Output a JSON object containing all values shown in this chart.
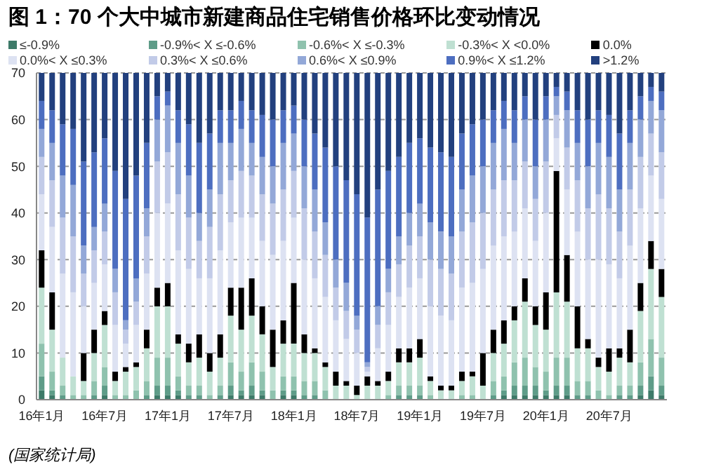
{
  "chart_data": {
    "type": "bar",
    "stacked": true,
    "title": "图 1：70 个大中城市新建商品住宅销售价格环比变动情况",
    "categories": [
      "16年1月",
      null,
      null,
      null,
      null,
      null,
      "16年7月",
      null,
      null,
      null,
      null,
      null,
      "17年1月",
      null,
      null,
      null,
      null,
      null,
      "17年7月",
      null,
      null,
      null,
      null,
      null,
      "18年1月",
      null,
      null,
      null,
      null,
      null,
      "18年7月",
      null,
      null,
      null,
      null,
      null,
      "19年1月",
      null,
      null,
      null,
      null,
      null,
      "19年7月",
      null,
      null,
      null,
      null,
      null,
      "20年1月",
      null,
      null,
      null,
      null,
      null,
      "20年7月",
      null,
      null,
      null,
      null,
      null
    ],
    "series": [
      {
        "name": "≤-0.9%",
        "color": "#3d7a68",
        "values": [
          2,
          1,
          0,
          0,
          0,
          0,
          1,
          0,
          0,
          0,
          0,
          1,
          1,
          1,
          0,
          0,
          0,
          0,
          1,
          1,
          1,
          1,
          0,
          1,
          1,
          0,
          0,
          0,
          0,
          0,
          0,
          0,
          0,
          0,
          0,
          0,
          0,
          0,
          0,
          0,
          0,
          0,
          0,
          0,
          1,
          1,
          1,
          1,
          1,
          1,
          1,
          0,
          0,
          0,
          0,
          0,
          0,
          1,
          2,
          1
        ]
      },
      {
        "name": "-0.9%< X ≤-0.6%",
        "color": "#5e9c88",
        "values": [
          3,
          1,
          1,
          0,
          0,
          1,
          2,
          0,
          0,
          0,
          1,
          2,
          2,
          1,
          1,
          1,
          0,
          1,
          2,
          1,
          2,
          1,
          0,
          1,
          1,
          1,
          1,
          0,
          0,
          0,
          0,
          0,
          0,
          0,
          1,
          1,
          1,
          0,
          0,
          0,
          0,
          0,
          0,
          1,
          1,
          2,
          2,
          2,
          1,
          2,
          2,
          1,
          1,
          0,
          0,
          1,
          1,
          2,
          3,
          2
        ]
      },
      {
        "name": "-0.6%< X ≤-0.3%",
        "color": "#8fc2ae",
        "values": [
          7,
          4,
          2,
          1,
          1,
          3,
          4,
          1,
          1,
          2,
          3,
          6,
          6,
          3,
          2,
          2,
          1,
          2,
          5,
          4,
          5,
          4,
          2,
          3,
          3,
          3,
          3,
          2,
          0,
          0,
          0,
          0,
          0,
          1,
          2,
          2,
          2,
          1,
          0,
          0,
          1,
          1,
          0,
          3,
          3,
          5,
          6,
          4,
          4,
          6,
          6,
          3,
          3,
          2,
          1,
          2,
          2,
          5,
          8,
          6
        ]
      },
      {
        "name": "-0.3%< X <0.0%",
        "color": "#bfe0d2",
        "values": [
          12,
          9,
          6,
          4,
          3,
          6,
          9,
          3,
          5,
          5,
          7,
          11,
          11,
          7,
          5,
          6,
          5,
          6,
          10,
          9,
          10,
          8,
          5,
          7,
          7,
          6,
          6,
          5,
          3,
          3,
          1,
          3,
          3,
          3,
          5,
          5,
          6,
          3,
          2,
          2,
          3,
          4,
          3,
          6,
          7,
          9,
          12,
          9,
          9,
          14,
          12,
          7,
          7,
          5,
          5,
          6,
          5,
          11,
          15,
          13
        ]
      },
      {
        "name": "0.0%",
        "color": "#000000",
        "values": [
          8,
          8,
          0,
          0,
          6,
          5,
          3,
          2,
          1,
          1,
          4,
          4,
          5,
          2,
          4,
          5,
          4,
          5,
          6,
          9,
          8,
          6,
          8,
          5,
          13,
          4,
          1,
          1,
          3,
          1,
          2,
          2,
          1,
          2,
          3,
          3,
          4,
          1,
          1,
          1,
          2,
          1,
          7,
          5,
          5,
          3,
          5,
          4,
          8,
          26,
          10,
          9,
          2,
          2,
          5,
          2,
          7,
          6,
          6,
          6
        ]
      },
      {
        "name": "0.0%< X ≤0.3%",
        "color": "#dde2f2",
        "values": [
          12,
          14,
          18,
          18,
          10,
          10,
          10,
          10,
          5,
          8,
          12,
          16,
          17,
          18,
          16,
          12,
          16,
          18,
          14,
          15,
          13,
          14,
          16,
          17,
          14,
          16,
          15,
          14,
          11,
          9,
          7,
          1,
          7,
          10,
          11,
          13,
          13,
          15,
          15,
          14,
          18,
          19,
          18,
          18,
          18,
          16,
          15,
          14,
          17,
          7,
          14,
          16,
          17,
          21,
          18,
          15,
          18,
          16,
          14,
          15
        ]
      },
      {
        "name": "0.3%< X ≤0.6%",
        "color": "#c2cbe8",
        "values": [
          8,
          10,
          12,
          12,
          7,
          7,
          7,
          7,
          3,
          5,
          8,
          11,
          11,
          12,
          11,
          8,
          11,
          12,
          9,
          10,
          9,
          10,
          11,
          11,
          10,
          11,
          10,
          9,
          7,
          6,
          5,
          1,
          5,
          7,
          7,
          9,
          9,
          10,
          10,
          10,
          12,
          13,
          12,
          12,
          12,
          11,
          10,
          9,
          11,
          5,
          9,
          11,
          11,
          14,
          12,
          10,
          12,
          11,
          9,
          10
        ]
      },
      {
        "name": "0.6%< X ≤0.9%",
        "color": "#93a8d8",
        "values": [
          6,
          8,
          9,
          11,
          6,
          5,
          6,
          5,
          2,
          5,
          6,
          9,
          10,
          11,
          9,
          6,
          8,
          11,
          8,
          9,
          7,
          8,
          8,
          10,
          8,
          9,
          9,
          7,
          6,
          6,
          3,
          1,
          4,
          5,
          6,
          7,
          7,
          8,
          8,
          8,
          9,
          10,
          10,
          10,
          11,
          8,
          9,
          7,
          9,
          4,
          8,
          8,
          9,
          11,
          11,
          9,
          10,
          8,
          7,
          9
        ]
      },
      {
        "name": "0.9%< X ≤1.2%",
        "color": "#4d6ec0",
        "values": [
          6,
          7,
          11,
          12,
          18,
          16,
          14,
          21,
          26,
          22,
          14,
          5,
          3,
          7,
          11,
          15,
          12,
          7,
          7,
          6,
          7,
          9,
          10,
          7,
          6,
          10,
          12,
          16,
          20,
          22,
          26,
          31,
          25,
          21,
          17,
          15,
          14,
          16,
          17,
          17,
          12,
          11,
          10,
          7,
          6,
          7,
          5,
          10,
          5,
          2,
          4,
          7,
          10,
          7,
          9,
          12,
          7,
          5,
          3,
          4
        ]
      },
      {
        "name": ">1.2%",
        "color": "#22407e",
        "values": [
          6,
          8,
          11,
          12,
          19,
          17,
          14,
          21,
          27,
          22,
          15,
          5,
          4,
          8,
          11,
          15,
          13,
          8,
          8,
          6,
          8,
          9,
          10,
          8,
          7,
          10,
          13,
          16,
          20,
          23,
          26,
          31,
          25,
          21,
          18,
          15,
          14,
          16,
          17,
          18,
          13,
          11,
          10,
          8,
          6,
          8,
          5,
          10,
          5,
          3,
          4,
          8,
          10,
          8,
          9,
          13,
          8,
          5,
          3,
          4
        ]
      }
    ],
    "ylim": [
      0,
      70
    ],
    "yticks": [
      0,
      10,
      20,
      30,
      40,
      50,
      60,
      70
    ],
    "grid": "y",
    "legend": "top",
    "annotations": [
      "(国家统计局)"
    ]
  }
}
